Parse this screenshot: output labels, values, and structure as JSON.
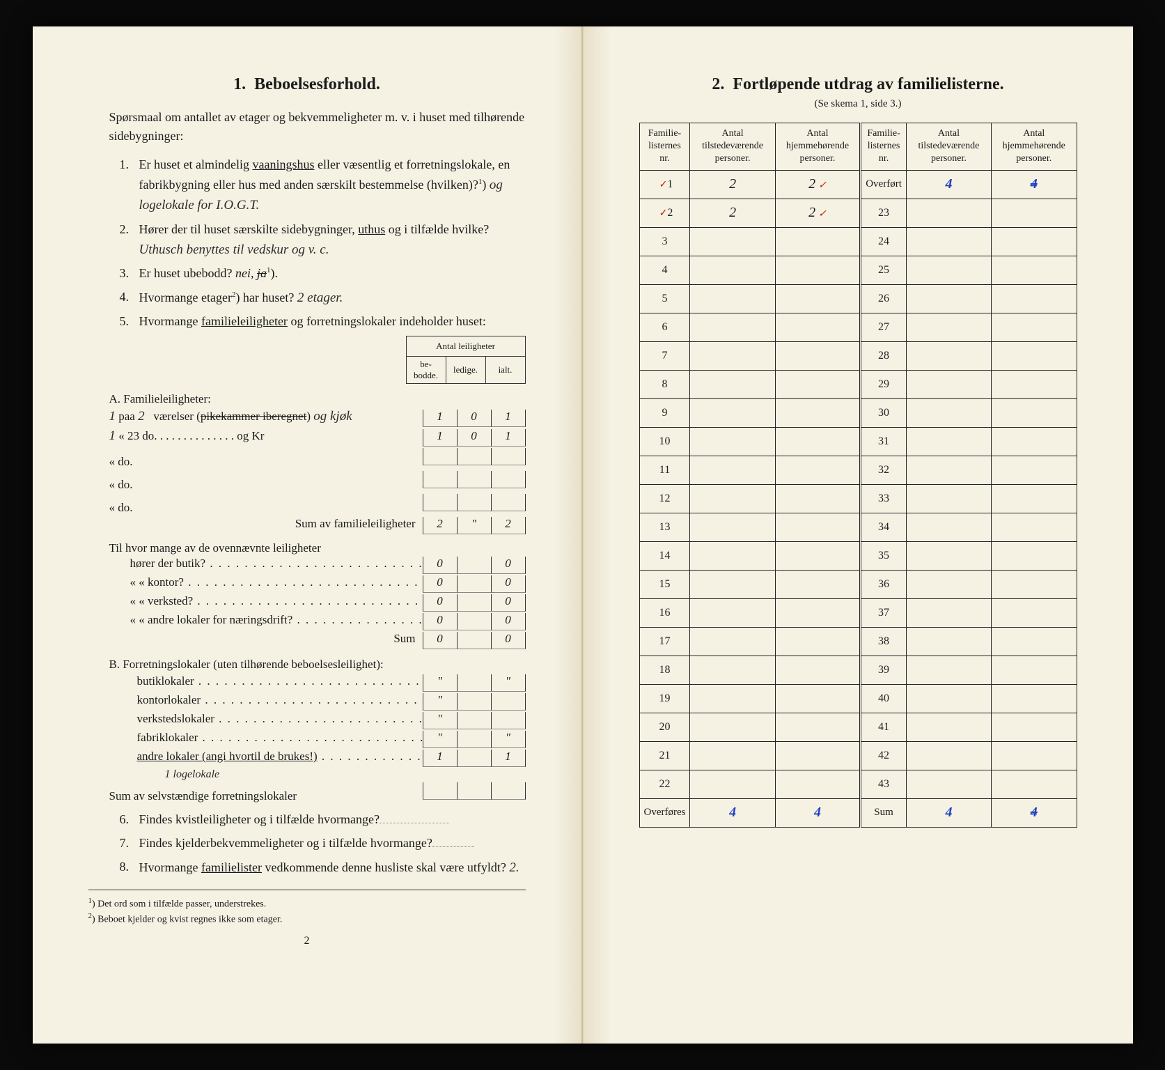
{
  "left": {
    "section_num": "1.",
    "section_title": "Beboelsesforhold.",
    "intro": "Spørsmaal om antallet av etager og bekvemmeligheter m. v. i huset med tilhørende sidebygninger:",
    "q1_num": "1.",
    "q1_text_a": "Er huset et almindelig ",
    "q1_under": "vaaningshus",
    "q1_text_b": " eller væsentlig et forretningslokale, en fabrikbygning eller hus med anden særskilt bestemmelse (hvilken)?",
    "q1_sup": "1",
    "q1_hand": "og logelokale for I.O.G.T.",
    "q2_num": "2.",
    "q2_text_a": "Hører der til huset særskilte sidebygninger, ",
    "q2_under": "uthus",
    "q2_text_b": " og i tilfælde hvilke?",
    "q2_hand": "Uthusch benyttes til vedskur og v. c.",
    "q3_num": "3.",
    "q3_text": "Er huset ubebodd?",
    "q3_ans_a": "nei,",
    "q3_ans_strike": "ja",
    "q3_sup": "1",
    "q4_num": "4.",
    "q4_text": "Hvormange etager",
    "q4_sup": "2",
    "q4_text_b": ") har huset?",
    "q4_hand": "2 etager.",
    "q5_num": "5.",
    "q5_text": "Hvormange ",
    "q5_under": "familieleiligheter",
    "q5_text_b": " og forretningslokaler indeholder huset:",
    "tbl_header": "Antal leiligheter",
    "tbl_h1": "be-\nbodde.",
    "tbl_h2": "ledige.",
    "tbl_h3": "ialt.",
    "secA_title": "A. Familieleiligheter:",
    "rowsA": [
      {
        "pre": "1",
        "label": "paa 2   værelser (pikekammer iberegnet) og kjøk",
        "be": "1",
        "le": "0",
        "ia": "1",
        "strike": true
      },
      {
        "pre": "1",
        "label": "«   23      do.   . . . . . . . . . . . . . og Kr",
        "be": "1",
        "le": "0",
        "ia": "1"
      },
      {
        "pre": "",
        "label": "«            do.",
        "be": "",
        "le": "",
        "ia": ""
      },
      {
        "pre": "",
        "label": "«            do.",
        "be": "",
        "le": "",
        "ia": ""
      },
      {
        "pre": "",
        "label": "«            do.",
        "be": "",
        "le": "",
        "ia": ""
      }
    ],
    "sumA_label": "Sum av familieleiligheter",
    "sumA": {
      "be": "2",
      "le": "\"",
      "ia": "2"
    },
    "butik_intro": "Til hvor mange av de ovennævnte leiligheter hører der butik?",
    "butik_rows": [
      {
        "label": "hører der butik?",
        "be": "0",
        "ia": "0"
      },
      {
        "label": "«      «   kontor?",
        "be": "0",
        "ia": "0"
      },
      {
        "label": "«      «   verksted?",
        "be": "0",
        "ia": "0"
      },
      {
        "label": "«      «   andre lokaler for næringsdrift?",
        "be": "0",
        "ia": "0"
      }
    ],
    "butik_sum_label": "Sum",
    "butik_sum": {
      "be": "0",
      "ia": "0"
    },
    "secB_title": "B. Forretningslokaler (uten tilhørende beboelsesleilighet):",
    "rowsB": [
      {
        "label": "butiklokaler",
        "be": "\"",
        "ia": "\""
      },
      {
        "label": "kontorlokaler",
        "be": "\"",
        "ia": ""
      },
      {
        "label": "verkstedslokaler",
        "be": "\"",
        "ia": ""
      },
      {
        "label": "fabriklokaler",
        "be": "\"",
        "ia": "\""
      },
      {
        "label": "andre lokaler (angi hvortil de brukes!)",
        "be": "1",
        "ia": "1",
        "under": true
      }
    ],
    "rowB_hand": "1 logelokale",
    "sumB_label": "Sum av selvstændige forretningslokaler",
    "q6_num": "6.",
    "q6_text": "Findes kvistleiligheter og i tilfælde hvormange?",
    "q7_num": "7.",
    "q7_text": "Findes kjelderbekvemmeligheter og i tilfælde hvormange?",
    "q8_num": "8.",
    "q8_text_a": "Hvormange ",
    "q8_under": "familielister",
    "q8_text_b": " vedkommende denne husliste skal være utfyldt?",
    "q8_hand": "2.",
    "fn1_sup": "1",
    "fn1": "Det ord som i tilfælde passer, understrekes.",
    "fn2_sup": "2",
    "fn2": "Beboet kjelder og kvist regnes ikke som etager.",
    "pagenum": "2"
  },
  "right": {
    "section_num": "2.",
    "section_title": "Fortløpende utdrag av familielisterne.",
    "subtitle": "(Se skema 1, side 3.)",
    "col1": "Familie-\nlisternes\nnr.",
    "col2": "Antal\ntilstedeværende\npersoner.",
    "col3": "Antal\nhjemmehørende\npersoner.",
    "overfort": "Overført",
    "overfort_a": "4",
    "overfort_b": "4",
    "rows_left": [
      {
        "n": "1",
        "a": "2",
        "b": "2",
        "red": "✓"
      },
      {
        "n": "2",
        "a": "2",
        "b": "2",
        "red": "✓"
      },
      {
        "n": "3",
        "a": "",
        "b": ""
      },
      {
        "n": "4",
        "a": "",
        "b": ""
      },
      {
        "n": "5",
        "a": "",
        "b": ""
      },
      {
        "n": "6",
        "a": "",
        "b": ""
      },
      {
        "n": "7",
        "a": "",
        "b": ""
      },
      {
        "n": "8",
        "a": "",
        "b": ""
      },
      {
        "n": "9",
        "a": "",
        "b": ""
      },
      {
        "n": "10",
        "a": "",
        "b": ""
      },
      {
        "n": "11",
        "a": "",
        "b": ""
      },
      {
        "n": "12",
        "a": "",
        "b": ""
      },
      {
        "n": "13",
        "a": "",
        "b": ""
      },
      {
        "n": "14",
        "a": "",
        "b": ""
      },
      {
        "n": "15",
        "a": "",
        "b": ""
      },
      {
        "n": "16",
        "a": "",
        "b": ""
      },
      {
        "n": "17",
        "a": "",
        "b": ""
      },
      {
        "n": "18",
        "a": "",
        "b": ""
      },
      {
        "n": "19",
        "a": "",
        "b": ""
      },
      {
        "n": "20",
        "a": "",
        "b": ""
      },
      {
        "n": "21",
        "a": "",
        "b": ""
      },
      {
        "n": "22",
        "a": "",
        "b": ""
      }
    ],
    "rows_right_nums": [
      "23",
      "24",
      "25",
      "26",
      "27",
      "28",
      "29",
      "30",
      "31",
      "32",
      "33",
      "34",
      "35",
      "36",
      "37",
      "38",
      "39",
      "40",
      "41",
      "42",
      "43"
    ],
    "overfores": "Overføres",
    "overfores_a": "4",
    "overfores_b": "4",
    "sum_label": "Sum",
    "sum_a": "4",
    "sum_b": "4"
  },
  "colors": {
    "paper": "#f5f2e4",
    "ink": "#1a1a1a",
    "blue_pencil": "#2040c0",
    "red_pencil": "#c02000",
    "background": "#0a0a0a"
  }
}
